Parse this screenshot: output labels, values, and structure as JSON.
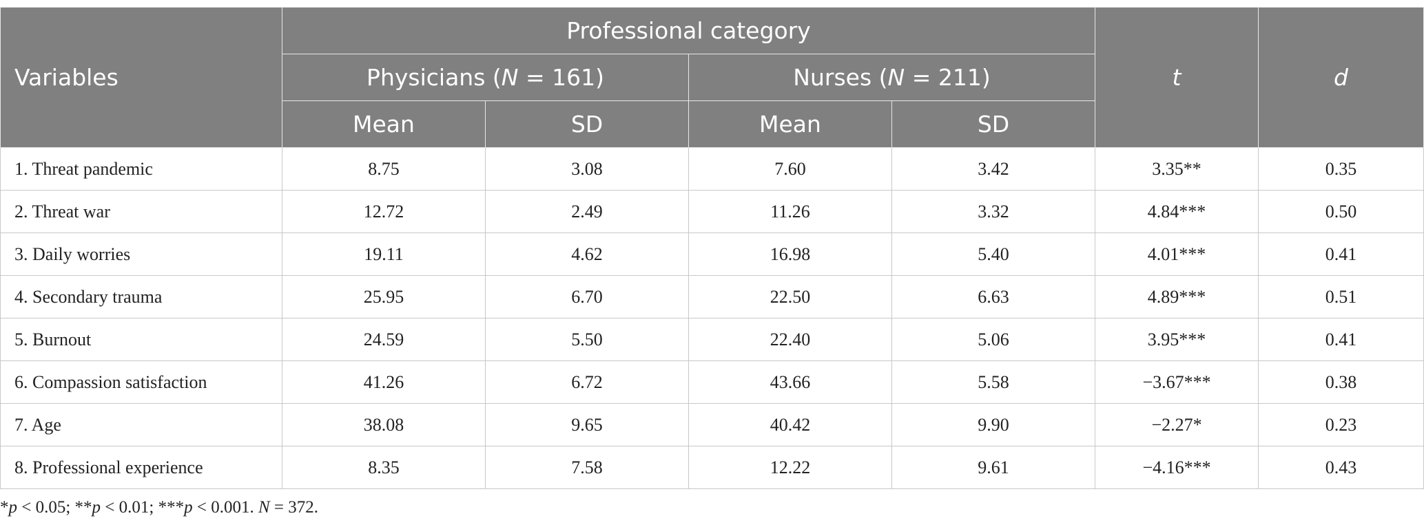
{
  "table": {
    "header": {
      "variables": "Variables",
      "group": "Professional category",
      "subgroups": [
        [
          "Physicians (",
          "N",
          " = 161)"
        ],
        [
          "Nurses (",
          "N",
          " = 211)"
        ]
      ],
      "columns": [
        "Mean",
        "SD",
        "Mean",
        "SD"
      ],
      "t": "t",
      "d": "d"
    },
    "rows": [
      [
        "1. Threat pandemic",
        "8.75",
        "3.08",
        "7.60",
        "3.42",
        "3.35**",
        "0.35"
      ],
      [
        "2. Threat war",
        "12.72",
        "2.49",
        "11.26",
        "3.32",
        "4.84***",
        "0.50"
      ],
      [
        "3. Daily worries",
        "19.11",
        "4.62",
        "16.98",
        "5.40",
        "4.01***",
        "0.41"
      ],
      [
        "4. Secondary trauma",
        "25.95",
        "6.70",
        "22.50",
        "6.63",
        "4.89***",
        "0.51"
      ],
      [
        "5. Burnout",
        "24.59",
        "5.50",
        "22.40",
        "5.06",
        "3.95***",
        "0.41"
      ],
      [
        "6. Compassion satisfaction",
        "41.26",
        "6.72",
        "43.66",
        "5.58",
        "−3.67***",
        "0.38"
      ],
      [
        "7. Age",
        "38.08",
        "9.65",
        "40.42",
        "9.90",
        "−2.27*",
        "0.23"
      ],
      [
        "8. Professional experience",
        "8.35",
        "7.58",
        "12.22",
        "9.61",
        "−4.16***",
        "0.43"
      ]
    ],
    "footnote": [
      "*",
      "p",
      " < 0.05; **",
      "p",
      " < 0.01; ***",
      "p",
      " < 0.001. ",
      "N",
      " = 372."
    ]
  }
}
